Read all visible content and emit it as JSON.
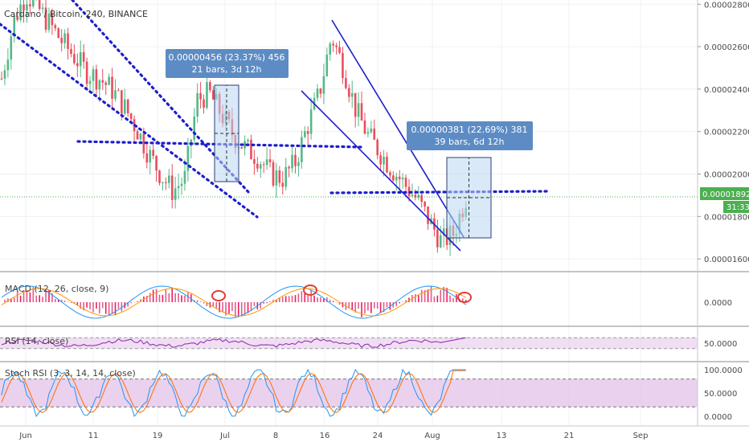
{
  "title": "Cardano / Bitcoin, 240, BINANCE",
  "price_axis": {
    "ticks": [
      "0.00002800",
      "0.00002600",
      "0.00002400",
      "0.00002200",
      "0.00002000",
      "0.00001800",
      "0.00001600"
    ],
    "tick_values": [
      2.8e-05,
      2.6e-05,
      2.4e-05,
      2.2e-05,
      2e-05,
      1.8e-05,
      1.6e-05
    ],
    "current_price": "0.00001892",
    "current_price_value": 1.892e-05,
    "countdown": "31:33"
  },
  "time_axis": {
    "labels": [
      "Jun",
      "11",
      "19",
      "Jul",
      "8",
      "16",
      "24",
      "Aug",
      "13",
      "21",
      "Sep"
    ]
  },
  "measurements": [
    {
      "line1": "0.00000456 (23.37%) 456",
      "line2": "21 bars, 3d 12h"
    },
    {
      "line1": "0.00000381 (22.69%) 381",
      "line2": "39 bars, 6d 12h"
    }
  ],
  "indicators": {
    "macd": {
      "label": "MACD (12, 26, close, 9)",
      "ticks": [
        "0.0000"
      ]
    },
    "rsi": {
      "label": "RSI (14, close)",
      "ticks": [
        "50.0000"
      ],
      "upper": 70,
      "lower": 30
    },
    "stoch": {
      "label": "Stoch RSI (3, 3, 14, 14, close)",
      "ticks": [
        "100.0000",
        "50.0000",
        "0.0000"
      ],
      "upper": 80,
      "lower": 20
    }
  },
  "colors": {
    "up": "#53b987",
    "down": "#eb4d5c",
    "trend": "#1e1ecc",
    "measure_box": "#bcd7f2",
    "measure_label": "#5d8cc4",
    "price_tag": "#4caf50",
    "macd_line": "#2196f3",
    "signal_line": "#ff9800",
    "rsi_line": "#8e24aa",
    "band": "#e1bee7",
    "stoch_k": "#2196f3",
    "stoch_d": "#ff6d00",
    "annotation": "#e53935"
  },
  "chart_data": {
    "type": "candlestick",
    "title": "Cardano / Bitcoin, 240, BINANCE",
    "ylim": [
      1.54e-05,
      2.82e-05
    ],
    "shape": [
      2.45e-05,
      2.72e-05,
      2.85e-05,
      2.78e-05,
      2.7e-05,
      2.62e-05,
      2.55e-05,
      2.48e-05,
      2.45e-05,
      2.4e-05,
      2.32e-05,
      2.22e-05,
      2.1e-05,
      2e-05,
      1.92e-05,
      1.98e-05,
      2.35e-05,
      2.38e-05,
      2.28e-05,
      2.18e-05,
      2.12e-05,
      2.08e-05,
      2e-05,
      1.98e-05,
      2.05e-05,
      2.22e-05,
      2.38e-05,
      2.65e-05,
      2.5e-05,
      2.3e-05,
      2.18e-05,
      2.1e-05,
      2.02e-05,
      1.95e-05,
      1.88e-05,
      1.78e-05,
      1.68e-05,
      1.72e-05,
      1.89e-05
    ],
    "rsi": {
      "ylim": [
        0,
        100
      ],
      "last": 70
    },
    "stoch_rsi": {
      "ylim": [
        0,
        100
      ],
      "last": 100
    }
  }
}
